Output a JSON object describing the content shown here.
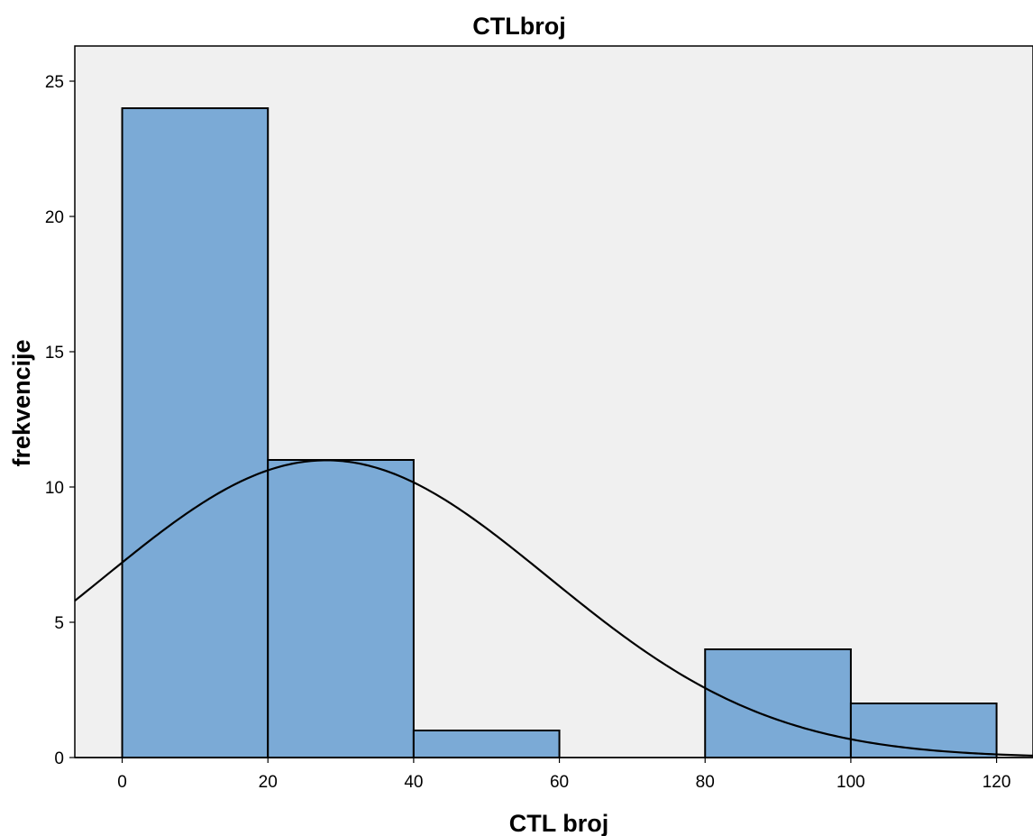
{
  "chart_data": {
    "type": "bar",
    "title": "CTLbroj",
    "xlabel": "CTL broj",
    "ylabel": "frekvencije",
    "bins": [
      {
        "x0": 0,
        "x1": 20,
        "value": 24
      },
      {
        "x0": 20,
        "x1": 40,
        "value": 11
      },
      {
        "x0": 40,
        "x1": 60,
        "value": 1
      },
      {
        "x0": 60,
        "x1": 80,
        "value": 0
      },
      {
        "x0": 80,
        "x1": 100,
        "value": 4
      },
      {
        "x0": 100,
        "x1": 120,
        "value": 2
      }
    ],
    "x_ticks": [
      0,
      20,
      40,
      60,
      80,
      100,
      120
    ],
    "y_ticks": [
      0,
      5,
      10,
      15,
      20,
      25
    ],
    "xlim": [
      -6.5,
      125
    ],
    "ylim": [
      0,
      26.3
    ],
    "normal_curve": {
      "mean": 28,
      "sd": 30.5,
      "n": 42,
      "bin_width": 20
    },
    "grid": false,
    "colors": {
      "bar_fill": "#7baad6",
      "bar_stroke": "#000000",
      "plot_bg": "#f0f0f0",
      "curve": "#000000"
    }
  }
}
